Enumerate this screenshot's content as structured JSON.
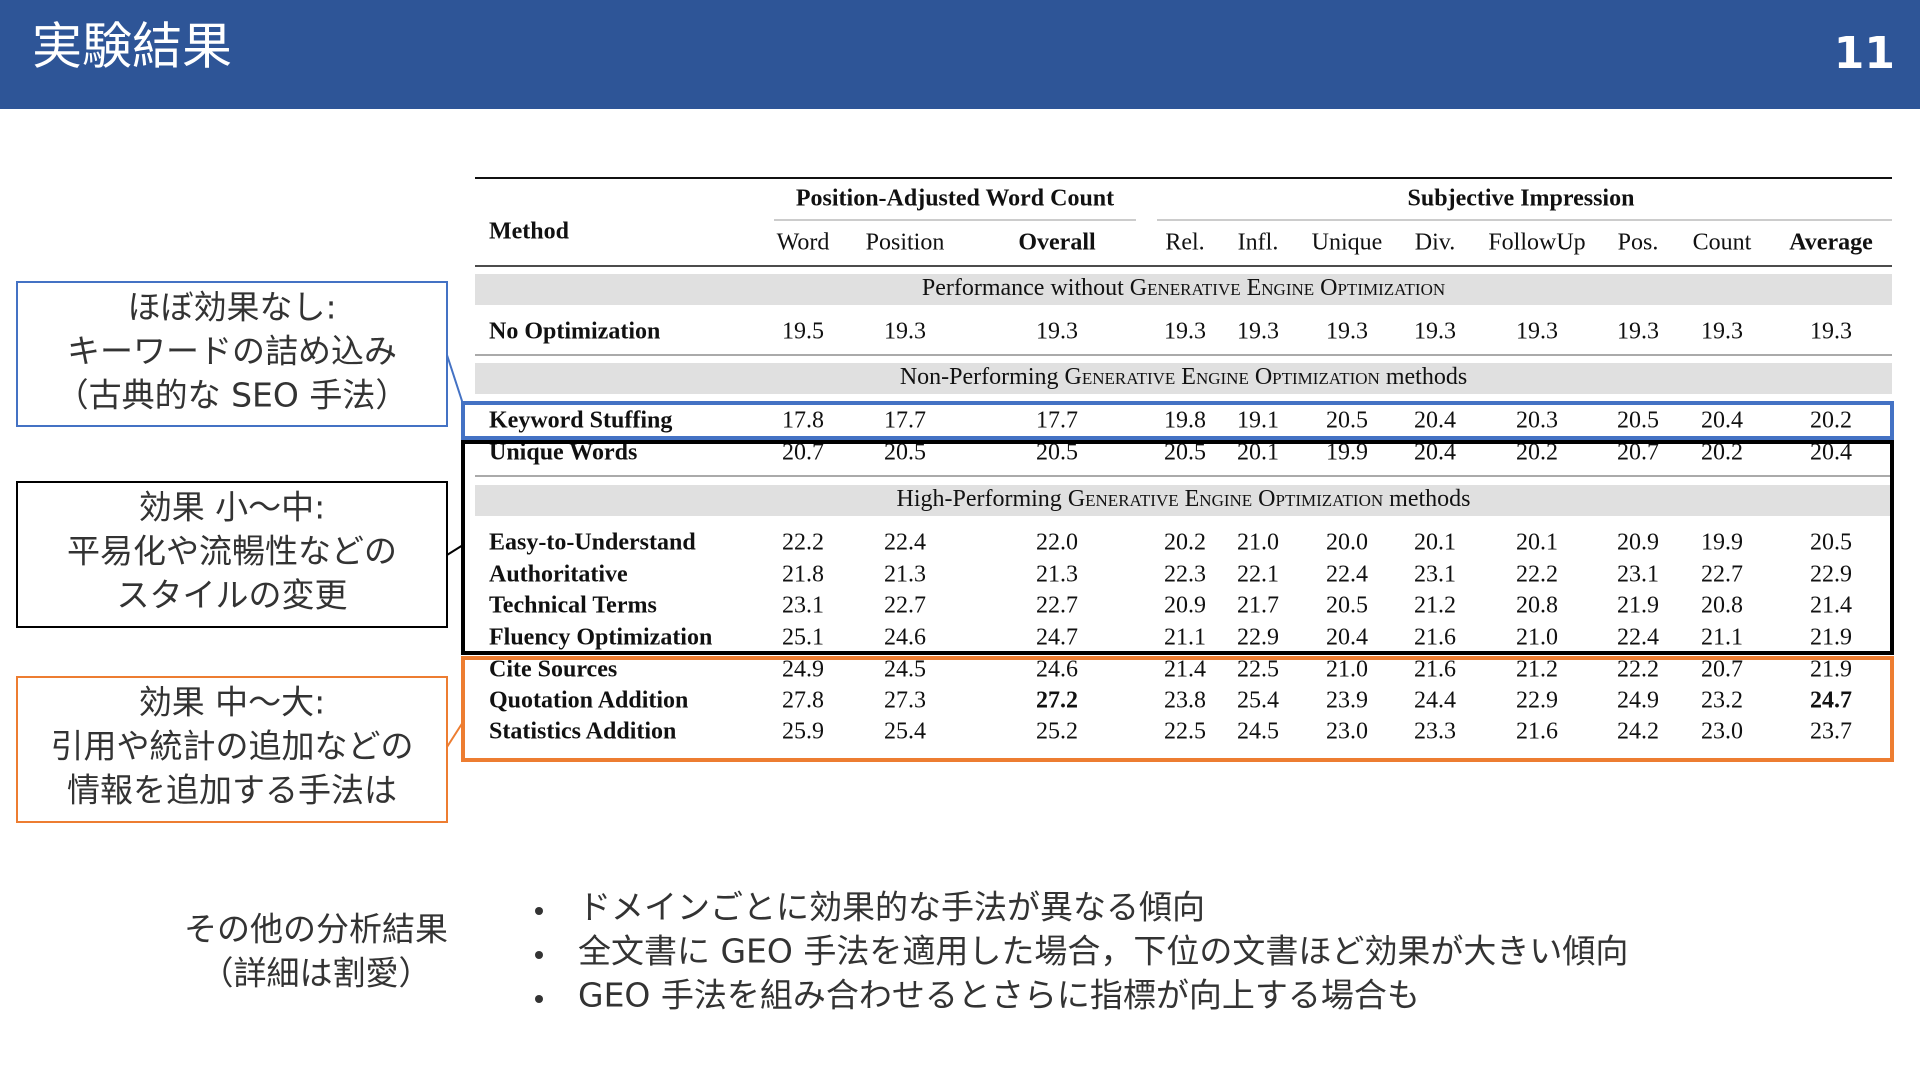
{
  "header": {
    "title": "実験結果",
    "page_number": "11"
  },
  "table": {
    "method_header": "Method",
    "groups": [
      "Position-Adjusted Word Count",
      "Subjective Impression"
    ],
    "columns": [
      "Word",
      "Position",
      "Overall",
      "Rel.",
      "Infl.",
      "Unique",
      "Div.",
      "FollowUp",
      "Pos.",
      "Count",
      "Average"
    ],
    "bold_columns": [
      2,
      10
    ],
    "sections": [
      {
        "before": "Performance without",
        "caps": "Generative Engine Optimization",
        "rows": [
          {
            "method": "No Optimization",
            "values": [
              "19.5",
              "19.3",
              "19.3",
              "19.3",
              "19.3",
              "19.3",
              "19.3",
              "19.3",
              "19.3",
              "19.3",
              "19.3"
            ]
          }
        ]
      },
      {
        "before": "Non-Performing",
        "caps": "Generative Engine Optimization",
        "after": "methods",
        "rows": [
          {
            "method": "Keyword Stuffing",
            "values": [
              "17.8",
              "17.7",
              "17.7",
              "19.8",
              "19.1",
              "20.5",
              "20.4",
              "20.3",
              "20.5",
              "20.4",
              "20.2"
            ]
          },
          {
            "method": "Unique Words",
            "values": [
              "20.7",
              "20.5",
              "20.5",
              "20.5",
              "20.1",
              "19.9",
              "20.4",
              "20.2",
              "20.7",
              "20.2",
              "20.4"
            ]
          }
        ]
      },
      {
        "before": "High-Performing",
        "caps": "Generative Engine Optimization",
        "after": "methods",
        "rows": [
          {
            "method": "Easy-to-Understand",
            "values": [
              "22.2",
              "22.4",
              "22.0",
              "20.2",
              "21.0",
              "20.0",
              "20.1",
              "20.1",
              "20.9",
              "19.9",
              "20.5"
            ]
          },
          {
            "method": "Authoritative",
            "values": [
              "21.8",
              "21.3",
              "21.3",
              "22.3",
              "22.1",
              "22.4",
              "23.1",
              "22.2",
              "23.1",
              "22.7",
              "22.9"
            ]
          },
          {
            "method": "Technical Terms",
            "values": [
              "23.1",
              "22.7",
              "22.7",
              "20.9",
              "21.7",
              "20.5",
              "21.2",
              "20.8",
              "21.9",
              "20.8",
              "21.4"
            ]
          },
          {
            "method": "Fluency Optimization",
            "values": [
              "25.1",
              "24.6",
              "24.7",
              "21.1",
              "22.9",
              "20.4",
              "21.6",
              "21.0",
              "22.4",
              "21.1",
              "21.9"
            ]
          },
          {
            "method": "Cite Sources",
            "values": [
              "24.9",
              "24.5",
              "24.6",
              "21.4",
              "22.5",
              "21.0",
              "21.6",
              "21.2",
              "22.2",
              "20.7",
              "21.9"
            ]
          },
          {
            "method": "Quotation Addition",
            "values": [
              "27.8",
              "27.3",
              "27.2",
              "23.8",
              "25.4",
              "23.9",
              "24.4",
              "22.9",
              "24.9",
              "23.2",
              "24.7"
            ],
            "bold_columns": [
              2,
              10
            ]
          },
          {
            "method": "Statistics Addition",
            "values": [
              "25.9",
              "25.4",
              "25.2",
              "22.5",
              "24.5",
              "23.0",
              "23.3",
              "21.6",
              "24.2",
              "23.0",
              "23.7"
            ]
          }
        ]
      }
    ]
  },
  "callouts": [
    {
      "color": "#4472c4",
      "lines": [
        "ほぼ効果なし:",
        "キーワードの詰め込み",
        "（古典的な SEO 手法）"
      ]
    },
    {
      "color": "#000000",
      "lines": [
        "効果 小〜中:",
        "平易化や流暢性などの",
        "スタイルの変更"
      ]
    },
    {
      "color": "#ed7d31",
      "lines": [
        "効果 中〜大:",
        "引用や統計の追加などの",
        "情報を追加する手法は"
      ]
    }
  ],
  "notes": {
    "label": [
      "その他の分析結果",
      "（詳細は割愛）"
    ],
    "bullets": [
      "ドメインごとに効果的な手法が異なる傾向",
      "全文書に GEO 手法を適用した場合，下位の文書ほど効果が大きい傾向",
      "GEO 手法を組み合わせるとさらに指標が向上する場合も"
    ]
  }
}
